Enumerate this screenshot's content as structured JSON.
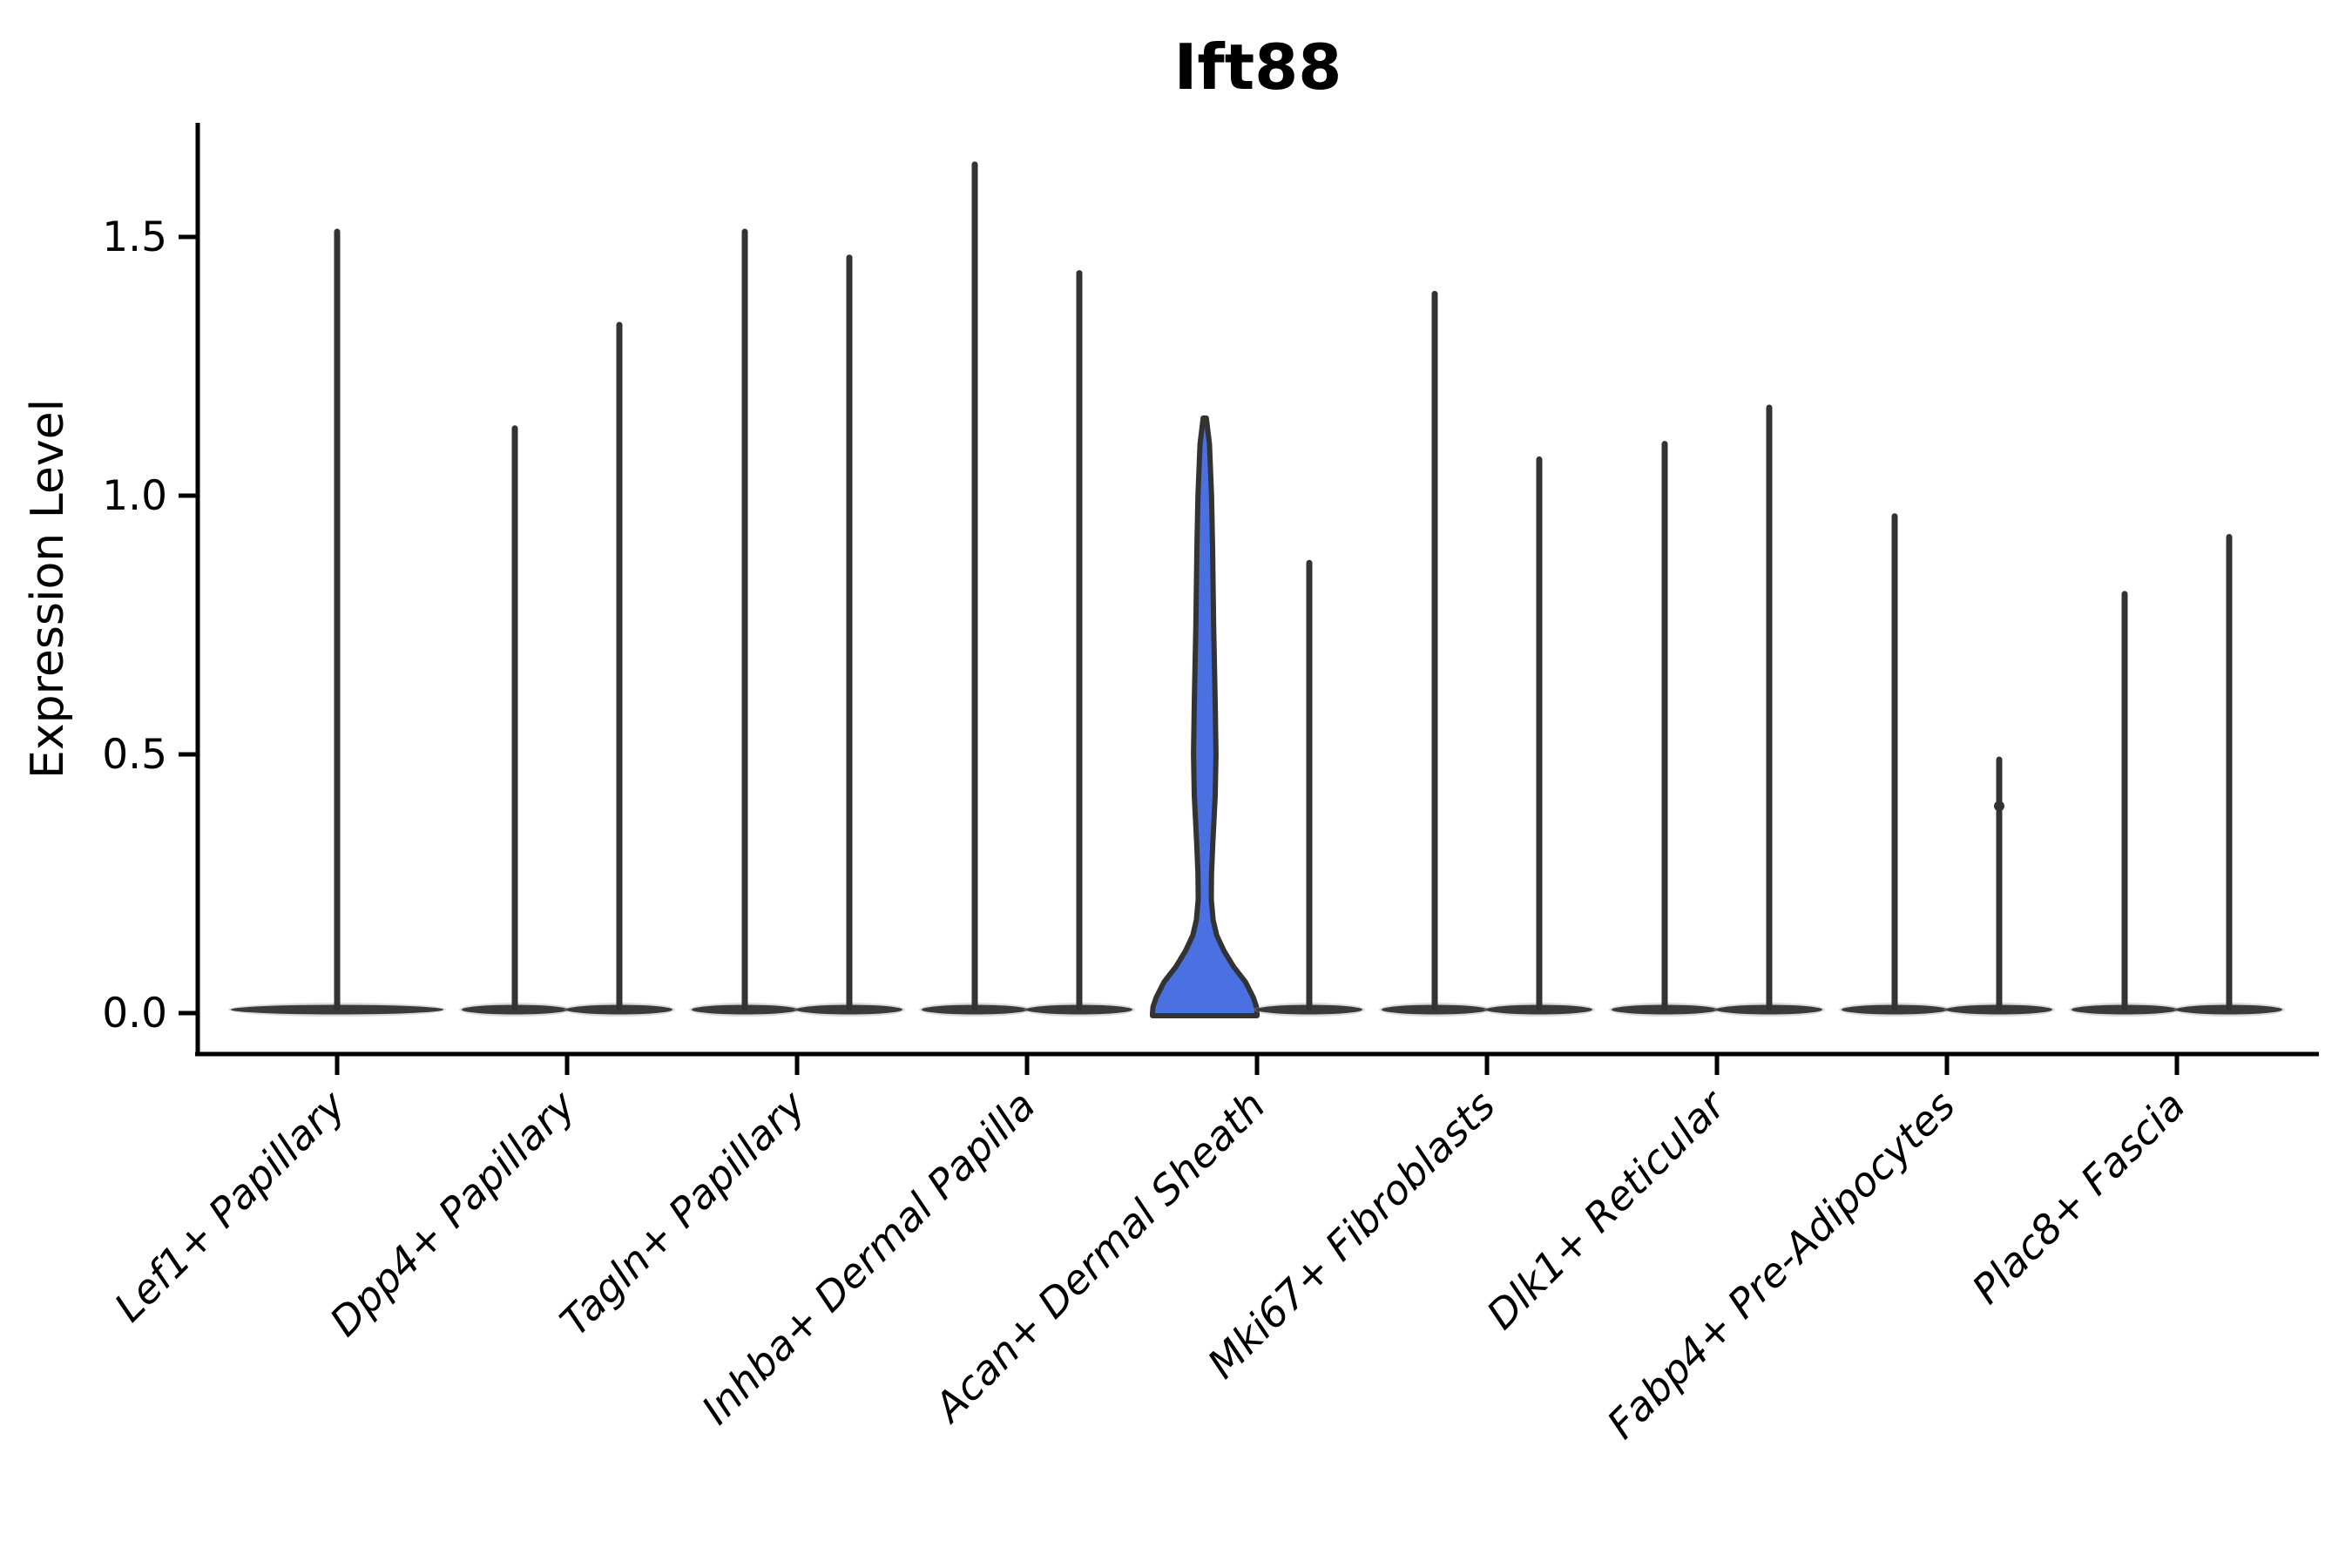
{
  "title": "Ift88",
  "y_axis": {
    "label": "Expression Level",
    "tick_labels": [
      "0.0",
      "0.5",
      "1.0",
      "1.5"
    ]
  },
  "colors": {
    "highlight_fill": "#4B70E2",
    "violin_stroke": "#333333",
    "base_fill": "#3a3a3a",
    "axis": "#000000",
    "text": "#000000"
  },
  "chart_data": {
    "type": "violin",
    "title": "Ift88",
    "xlabel": "",
    "ylabel": "Expression Level",
    "yticks": [
      0.0,
      0.5,
      1.0,
      1.5
    ],
    "ylim": [
      -0.06,
      1.72
    ],
    "grid": false,
    "legend": "none",
    "categories": [
      "Lef1+ Papillary",
      "Dpp4+ Papillary",
      "Tagln+ Papillary",
      "Inhba+ Dermal Papilla",
      "Acan+ Dermal Sheath",
      "Mki67+ Fibroblasts",
      "Dlk1+ Reticular",
      "Fabp4+ Pre-Adipocytes",
      "Plac8+ Fascia"
    ],
    "description": "Violin plot of Ift88 expression; most mass at 0 for every violin, each drawn as a flat base at 0 with a thin spike to its maximum. Each category except the first shows two side-by-side violins; the left violin of Acan+ Dermal Sheath is highlighted blue with visible density body.",
    "violins": [
      {
        "category": "Lef1+ Papillary",
        "position": "center",
        "max": 1.51,
        "highlighted": false
      },
      {
        "category": "Dpp4+ Papillary",
        "position": "left",
        "max": 1.13,
        "highlighted": false
      },
      {
        "category": "Dpp4+ Papillary",
        "position": "right",
        "max": 1.33,
        "highlighted": false
      },
      {
        "category": "Tagln+ Papillary",
        "position": "left",
        "max": 1.51,
        "highlighted": false
      },
      {
        "category": "Tagln+ Papillary",
        "position": "right",
        "max": 1.46,
        "highlighted": false
      },
      {
        "category": "Inhba+ Dermal Papilla",
        "position": "left",
        "max": 1.64,
        "highlighted": false
      },
      {
        "category": "Inhba+ Dermal Papilla",
        "position": "right",
        "max": 1.43,
        "highlighted": false
      },
      {
        "category": "Acan+ Dermal Sheath",
        "position": "left",
        "max": 1.15,
        "highlighted": true,
        "profile": [
          [
            1.15,
            0.03
          ],
          [
            1.1,
            0.09
          ],
          [
            1.0,
            0.13
          ],
          [
            0.9,
            0.15
          ],
          [
            0.75,
            0.17
          ],
          [
            0.6,
            0.2
          ],
          [
            0.5,
            0.215
          ],
          [
            0.42,
            0.2
          ],
          [
            0.33,
            0.155
          ],
          [
            0.27,
            0.13
          ],
          [
            0.22,
            0.125
          ],
          [
            0.18,
            0.16
          ],
          [
            0.15,
            0.23
          ],
          [
            0.12,
            0.37
          ],
          [
            0.09,
            0.55
          ],
          [
            0.06,
            0.78
          ],
          [
            0.03,
            0.93
          ],
          [
            0.012,
            0.99
          ],
          [
            0.0,
            1.0
          ]
        ]
      },
      {
        "category": "Acan+ Dermal Sheath",
        "position": "right",
        "max": 0.87,
        "highlighted": false
      },
      {
        "category": "Mki67+ Fibroblasts",
        "position": "left",
        "max": 1.39,
        "highlighted": false
      },
      {
        "category": "Mki67+ Fibroblasts",
        "position": "right",
        "max": 1.07,
        "highlighted": false
      },
      {
        "category": "Dlk1+ Reticular",
        "position": "left",
        "max": 1.1,
        "highlighted": false
      },
      {
        "category": "Dlk1+ Reticular",
        "position": "right",
        "max": 1.17,
        "highlighted": false
      },
      {
        "category": "Fabp4+ Pre-Adipocytes",
        "position": "left",
        "max": 0.96,
        "highlighted": false
      },
      {
        "category": "Fabp4+ Pre-Adipocytes",
        "position": "right",
        "max": 0.49,
        "highlighted": false,
        "points": [
          0.4
        ]
      },
      {
        "category": "Plac8+ Fascia",
        "position": "left",
        "max": 0.81,
        "highlighted": false
      },
      {
        "category": "Plac8+ Fascia",
        "position": "right",
        "max": 0.92,
        "highlighted": false
      }
    ]
  }
}
